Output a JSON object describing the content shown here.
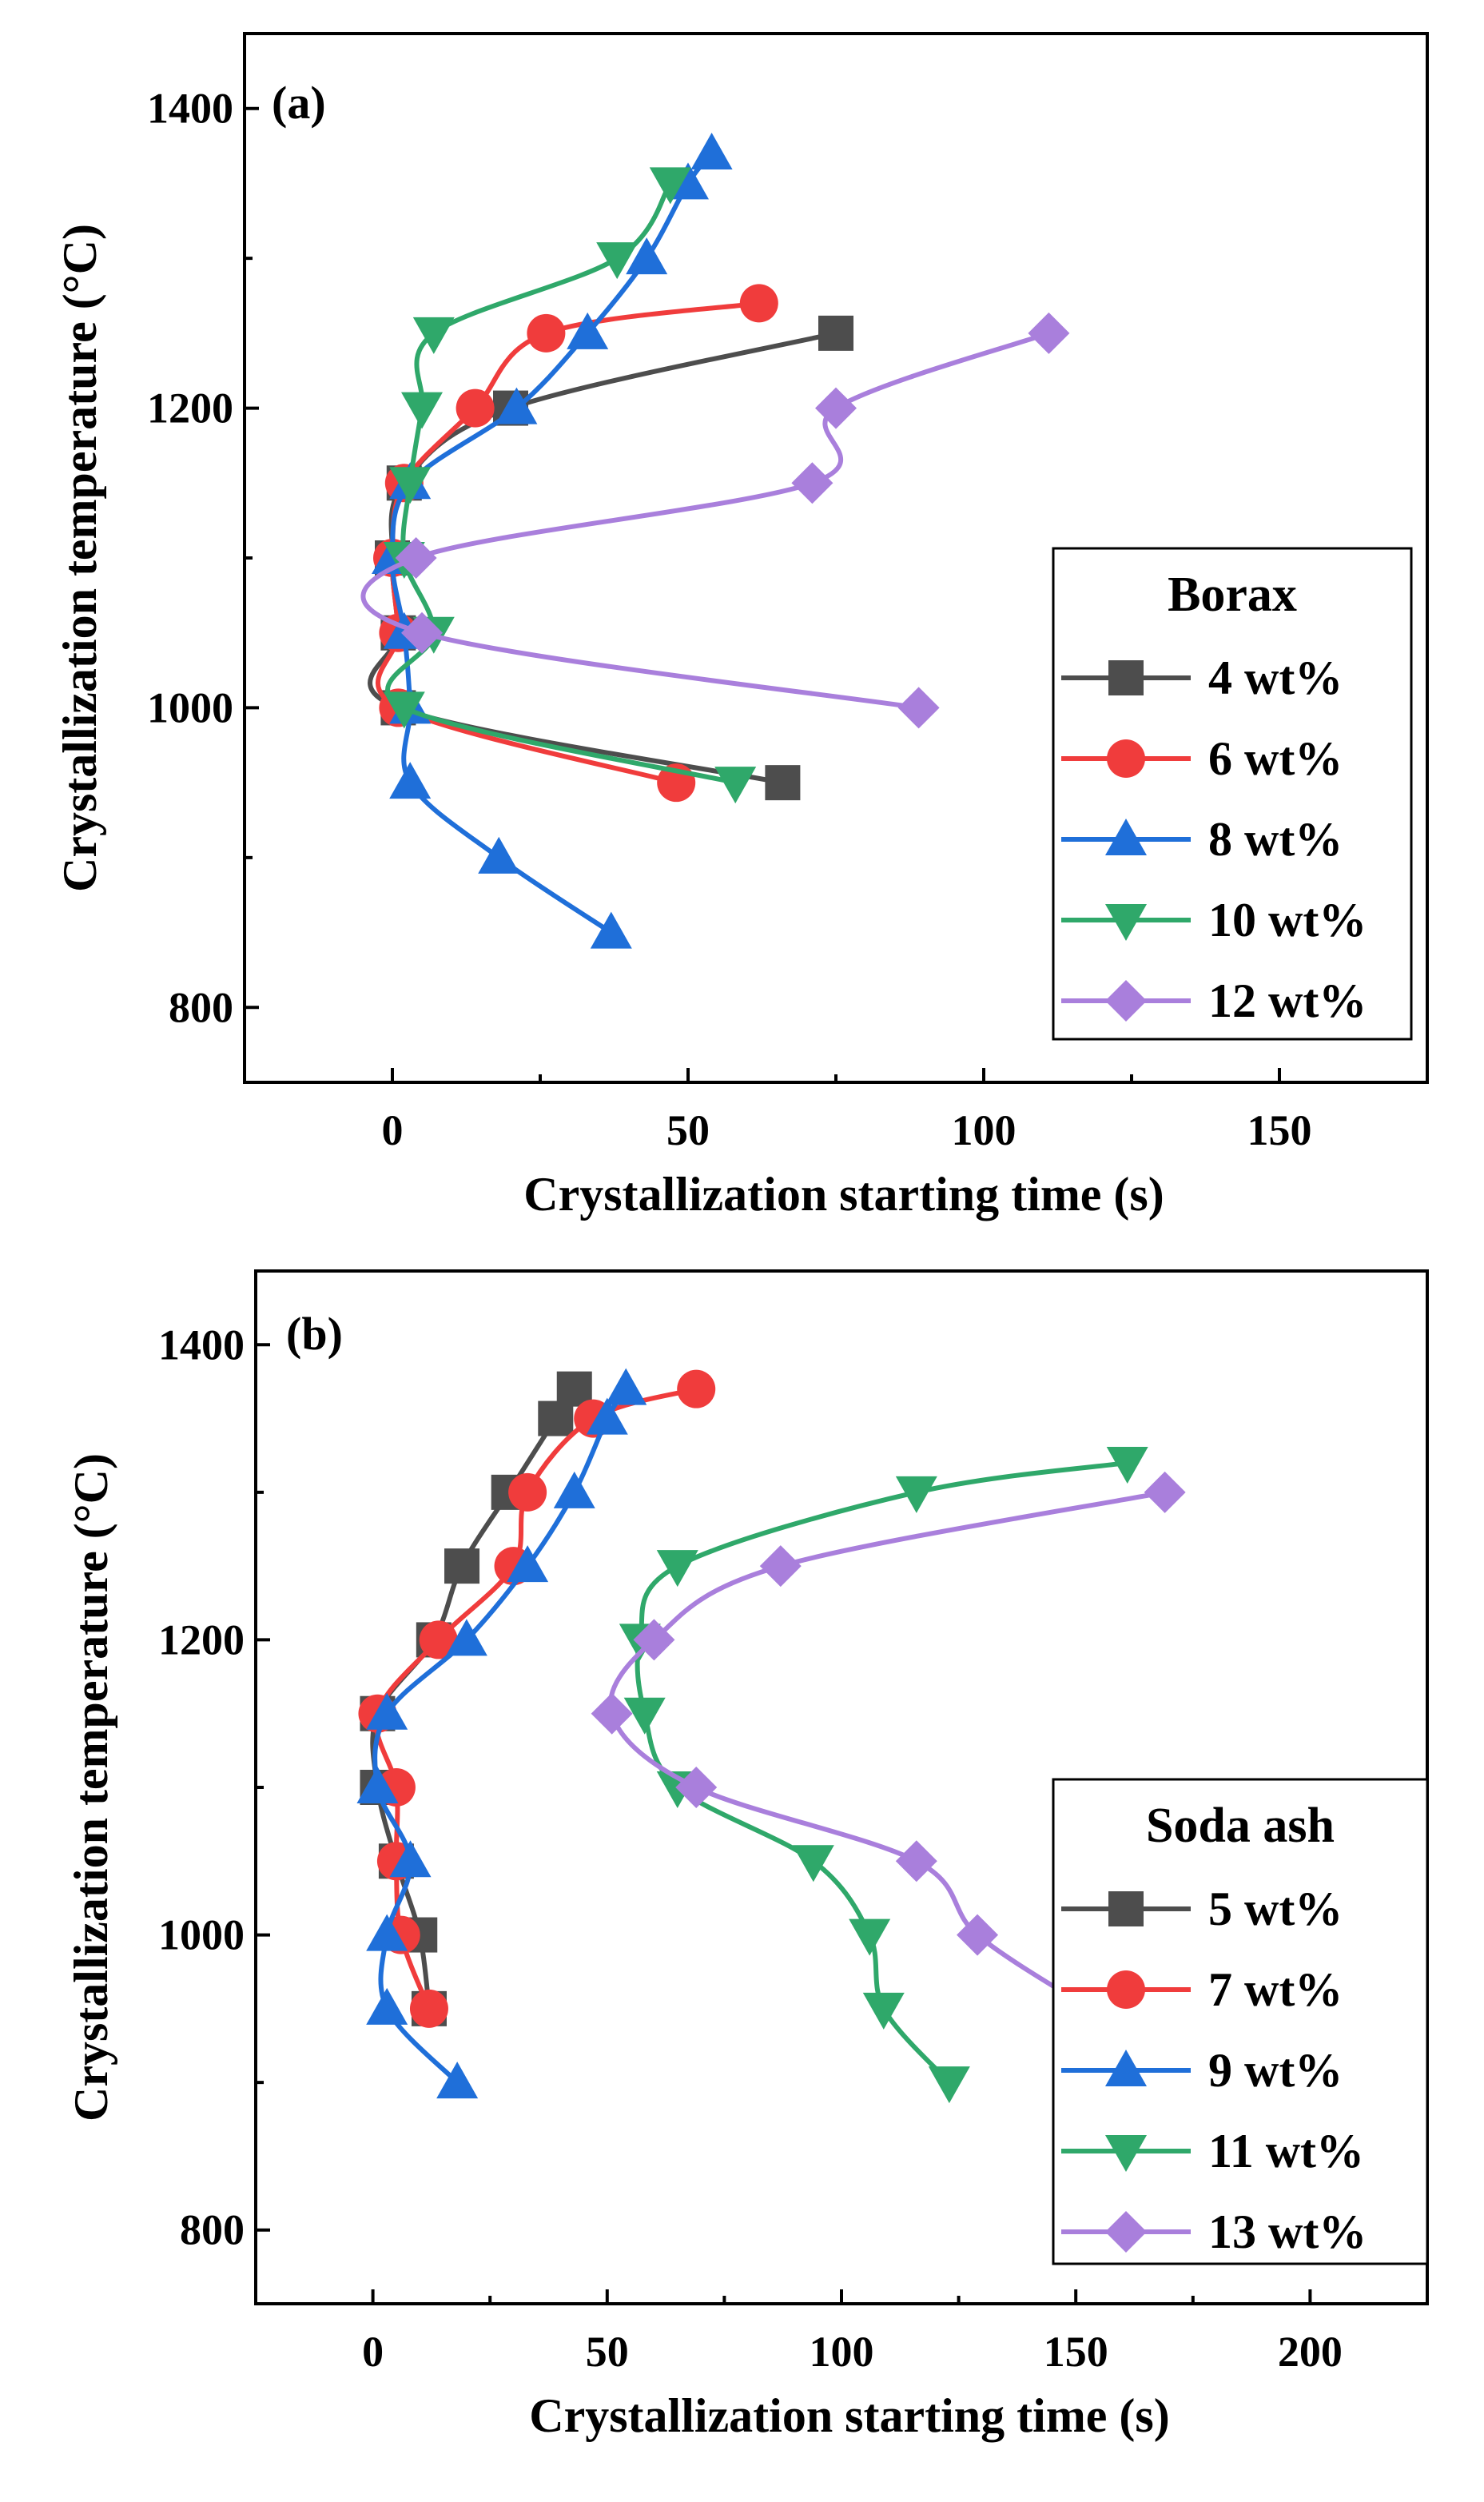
{
  "chart_data": [
    {
      "type": "line",
      "panel_label": "(a)",
      "title": "",
      "xlabel": "Crystallization starting time (s)",
      "ylabel": "Crystallization temperature (°C)",
      "xlim": [
        -25,
        175
      ],
      "ylim": [
        750,
        1450
      ],
      "xticks": [
        0,
        50,
        100,
        150
      ],
      "yticks": [
        800,
        1000,
        1200,
        1400
      ],
      "legend_title": "Borax",
      "legend_position": "right",
      "grid": false,
      "series": [
        {
          "name": "4 wt%",
          "color": "#4d4d4d",
          "marker": "square",
          "points": [
            [
              75,
              1250
            ],
            [
              20,
              1200
            ],
            [
              2,
              1150
            ],
            [
              0,
              1100
            ],
            [
              1,
              1050
            ],
            [
              1,
              1000
            ],
            [
              66,
              950
            ]
          ]
        },
        {
          "name": "6 wt%",
          "color": "#f03c3c",
          "marker": "circle",
          "points": [
            [
              62,
              1270
            ],
            [
              26,
              1250
            ],
            [
              14,
              1200
            ],
            [
              2,
              1150
            ],
            [
              0,
              1100
            ],
            [
              1,
              1050
            ],
            [
              1,
              1000
            ],
            [
              48,
              950
            ]
          ]
        },
        {
          "name": "8 wt%",
          "color": "#1f6fd9",
          "marker": "triangle-up",
          "points": [
            [
              54,
              1370
            ],
            [
              50,
              1350
            ],
            [
              43,
              1300
            ],
            [
              33,
              1250
            ],
            [
              21,
              1200
            ],
            [
              3,
              1150
            ],
            [
              0,
              1100
            ],
            [
              2,
              1050
            ],
            [
              3,
              1000
            ],
            [
              3,
              950
            ],
            [
              18,
              900
            ],
            [
              37,
              850
            ]
          ]
        },
        {
          "name": "10 wt%",
          "color": "#2fa86a",
          "marker": "triangle-down",
          "points": [
            [
              47,
              1350
            ],
            [
              38,
              1300
            ],
            [
              7,
              1250
            ],
            [
              5,
              1200
            ],
            [
              3,
              1150
            ],
            [
              2,
              1100
            ],
            [
              7,
              1050
            ],
            [
              2,
              1000
            ],
            [
              58,
              950
            ]
          ]
        },
        {
          "name": "12 wt%",
          "color": "#a97fdc",
          "marker": "diamond",
          "points": [
            [
              111,
              1250
            ],
            [
              75,
              1200
            ],
            [
              71,
              1150
            ],
            [
              4,
              1100
            ],
            [
              5,
              1050
            ],
            [
              89,
              1000
            ]
          ]
        }
      ]
    },
    {
      "type": "line",
      "panel_label": "(b)",
      "title": "",
      "xlabel": "Crystallization starting time (s)",
      "ylabel": "Crystallization temperature (°C)",
      "xlim": [
        -25,
        225
      ],
      "ylim": [
        750,
        1450
      ],
      "xticks": [
        0,
        50,
        100,
        150,
        200
      ],
      "yticks": [
        800,
        1000,
        1200,
        1400
      ],
      "legend_title": "Soda ash",
      "legend_position": "right",
      "grid": false,
      "series": [
        {
          "name": "5 wt%",
          "color": "#4d4d4d",
          "marker": "square",
          "points": [
            [
              43,
              1370
            ],
            [
              39,
              1350
            ],
            [
              29,
              1300
            ],
            [
              19,
              1250
            ],
            [
              13,
              1200
            ],
            [
              1,
              1150
            ],
            [
              1,
              1100
            ],
            [
              5,
              1050
            ],
            [
              10,
              1000
            ],
            [
              12,
              950
            ]
          ]
        },
        {
          "name": "7 wt%",
          "color": "#f03c3c",
          "marker": "circle",
          "points": [
            [
              69,
              1370
            ],
            [
              47,
              1350
            ],
            [
              33,
              1300
            ],
            [
              30,
              1250
            ],
            [
              14,
              1200
            ],
            [
              1,
              1150
            ],
            [
              5,
              1100
            ],
            [
              5,
              1050
            ],
            [
              6,
              1000
            ],
            [
              12,
              950
            ]
          ]
        },
        {
          "name": "9 wt%",
          "color": "#1f6fd9",
          "marker": "triangle-up",
          "points": [
            [
              54,
              1370
            ],
            [
              50,
              1350
            ],
            [
              43,
              1300
            ],
            [
              33,
              1250
            ],
            [
              20,
              1200
            ],
            [
              3,
              1150
            ],
            [
              1,
              1100
            ],
            [
              8,
              1050
            ],
            [
              3,
              1000
            ],
            [
              3,
              950
            ],
            [
              18,
              900
            ]
          ]
        },
        {
          "name": "11 wt%",
          "color": "#2fa86a",
          "marker": "triangle-down",
          "points": [
            [
              161,
              1320
            ],
            [
              116,
              1300
            ],
            [
              65,
              1250
            ],
            [
              57,
              1200
            ],
            [
              58,
              1150
            ],
            [
              65,
              1100
            ],
            [
              94,
              1050
            ],
            [
              106,
              1000
            ],
            [
              109,
              950
            ],
            [
              123,
              900
            ]
          ]
        },
        {
          "name": "13 wt%",
          "color": "#a97fdc",
          "marker": "diamond",
          "points": [
            [
              169,
              1300
            ],
            [
              87,
              1250
            ],
            [
              60,
              1200
            ],
            [
              51,
              1150
            ],
            [
              69,
              1100
            ],
            [
              116,
              1050
            ],
            [
              129,
              1000
            ],
            [
              153,
              950
            ]
          ]
        }
      ]
    }
  ]
}
